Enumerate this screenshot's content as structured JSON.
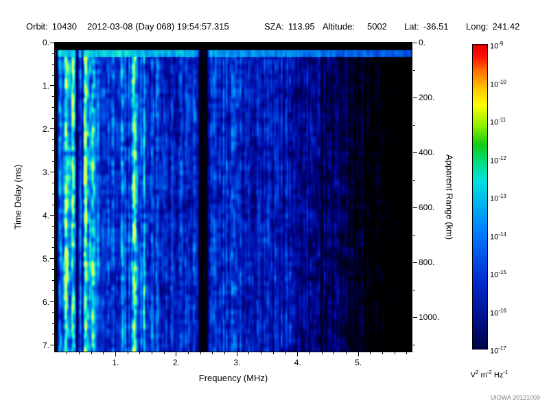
{
  "header": {
    "orbit_label": "Orbit:",
    "orbit": "10430",
    "datetime": "2012-03-08 (Day 068) 19:54:57.315",
    "sza_label": "SZA:",
    "sza": "113.95",
    "altitude_label": "Altitude:",
    "altitude": "5002",
    "lat_label": "Lat:",
    "lat": "-36.51",
    "long_label": "Long:",
    "long": "241.42"
  },
  "credit": "UIOWA 20121009",
  "chart_data": {
    "type": "heatmap",
    "description": "Radar sounder ionogram spectrogram: received spectral density versus sounding frequency and echo time delay",
    "xlabel": "Frequency (MHz)",
    "ylabel_left": "Time Delay (ms)",
    "ylabel_right": "Apparent Range (km)",
    "x_range_mhz": [
      0,
      5.88
    ],
    "y_range_ms": [
      0,
      7.15
    ],
    "right_axis_range_km": [
      0,
      1125
    ],
    "x_ticks": [
      {
        "v": 1,
        "label": "1."
      },
      {
        "v": 2,
        "label": "2."
      },
      {
        "v": 3,
        "label": "3."
      },
      {
        "v": 4,
        "label": "4."
      },
      {
        "v": 5,
        "label": "5."
      }
    ],
    "x_minor_step": 0.2,
    "y_ticks_left": [
      {
        "v": 0,
        "label": "0."
      },
      {
        "v": 1,
        "label": "1."
      },
      {
        "v": 2,
        "label": "2."
      },
      {
        "v": 3,
        "label": "3."
      },
      {
        "v": 4,
        "label": "4."
      },
      {
        "v": 5,
        "label": "5."
      },
      {
        "v": 6,
        "label": "6."
      },
      {
        "v": 7,
        "label": "7."
      }
    ],
    "y_left_minor_step": 0.25,
    "y_ticks_right": [
      {
        "v": 0,
        "label": "0."
      },
      {
        "v": 200,
        "label": "200."
      },
      {
        "v": 400,
        "label": "400."
      },
      {
        "v": 600,
        "label": "600."
      },
      {
        "v": 800,
        "label": "800."
      },
      {
        "v": 1000,
        "label": "1000."
      }
    ],
    "y_right_minor_step": 100,
    "colorbar": {
      "base": "10",
      "tick_exponents": [
        "-9",
        "-10",
        "-11",
        "-12",
        "-13",
        "-14",
        "-15",
        "-16",
        "-17"
      ],
      "max_value": "1e-9",
      "min_value": "1e-17",
      "unit_parts": [
        [
          "V",
          "2"
        ],
        [
          "m",
          "-2"
        ],
        [
          "Hz",
          "-1"
        ]
      ],
      "gradient_stops": [
        [
          0,
          "#dd0000"
        ],
        [
          0.04,
          "#ff1100"
        ],
        [
          0.09,
          "#ff7700"
        ],
        [
          0.15,
          "#ffcc00"
        ],
        [
          0.2,
          "#fdff00"
        ],
        [
          0.27,
          "#88ee00"
        ],
        [
          0.33,
          "#11cc11"
        ],
        [
          0.39,
          "#00dd88"
        ],
        [
          0.45,
          "#00e0e0"
        ],
        [
          0.53,
          "#00b0f0"
        ],
        [
          0.61,
          "#0080ff"
        ],
        [
          0.7,
          "#0050e8"
        ],
        [
          0.79,
          "#0028c8"
        ],
        [
          0.88,
          "#001498"
        ],
        [
          0.95,
          "#000868"
        ],
        [
          1,
          "#000448"
        ]
      ]
    },
    "colormap_stops": [
      [
        0,
        "#000000"
      ],
      [
        0.08,
        "#000028"
      ],
      [
        0.18,
        "#000070"
      ],
      [
        0.3,
        "#0014b4"
      ],
      [
        0.45,
        "#0048e0"
      ],
      [
        0.58,
        "#0084f0"
      ],
      [
        0.7,
        "#00c0e8"
      ],
      [
        0.8,
        "#18e8d0"
      ],
      [
        0.88,
        "#50f8a0"
      ],
      [
        0.95,
        "#a0ff70"
      ],
      [
        1,
        "#e8ff50"
      ]
    ],
    "render": {
      "seed": 20121009,
      "black_top_ms": 0.17,
      "surface_band_end_ms": 0.33,
      "bright_lines": [
        [
          0.18,
          0.3,
          2.5
        ],
        [
          0.3,
          0.38,
          2.2
        ],
        [
          0.35,
          0.12,
          25
        ],
        [
          0.5,
          0.3,
          2.2
        ],
        [
          0.64,
          0.2,
          2.0
        ],
        [
          1.1,
          0.16,
          2.0
        ],
        [
          1.31,
          0.5,
          2.8
        ],
        [
          1.46,
          0.22,
          2.0
        ]
      ],
      "dark_lines": [
        [
          0.02,
          0.9,
          1.6
        ],
        [
          0.36,
          0.8,
          1.6
        ],
        [
          0.45,
          0.45,
          1.3
        ],
        [
          2.41,
          1.0,
          3.2
        ],
        [
          2.49,
          0.85,
          2.4
        ]
      ],
      "right_falloff_start_mhz": 3.5,
      "right_falloff_rate": 0.085,
      "features": {
        "top_black_band": "solid black band at 0 - 0.17 ms delay across all frequencies",
        "surface_echo_band": "bright cyan-green horizontal band near 0.25 ms across all frequencies",
        "bright_vertical_lines_mhz": [
          0.18,
          0.3,
          0.5,
          1.31,
          1.46
        ],
        "black_vertical_gap_mhz": 2.41,
        "intensity_trend": "bright blue-cyan below 2.3 MHz, medium blue 2.5-4 MHz, patchy dark blue and black above 4 MHz"
      }
    }
  }
}
